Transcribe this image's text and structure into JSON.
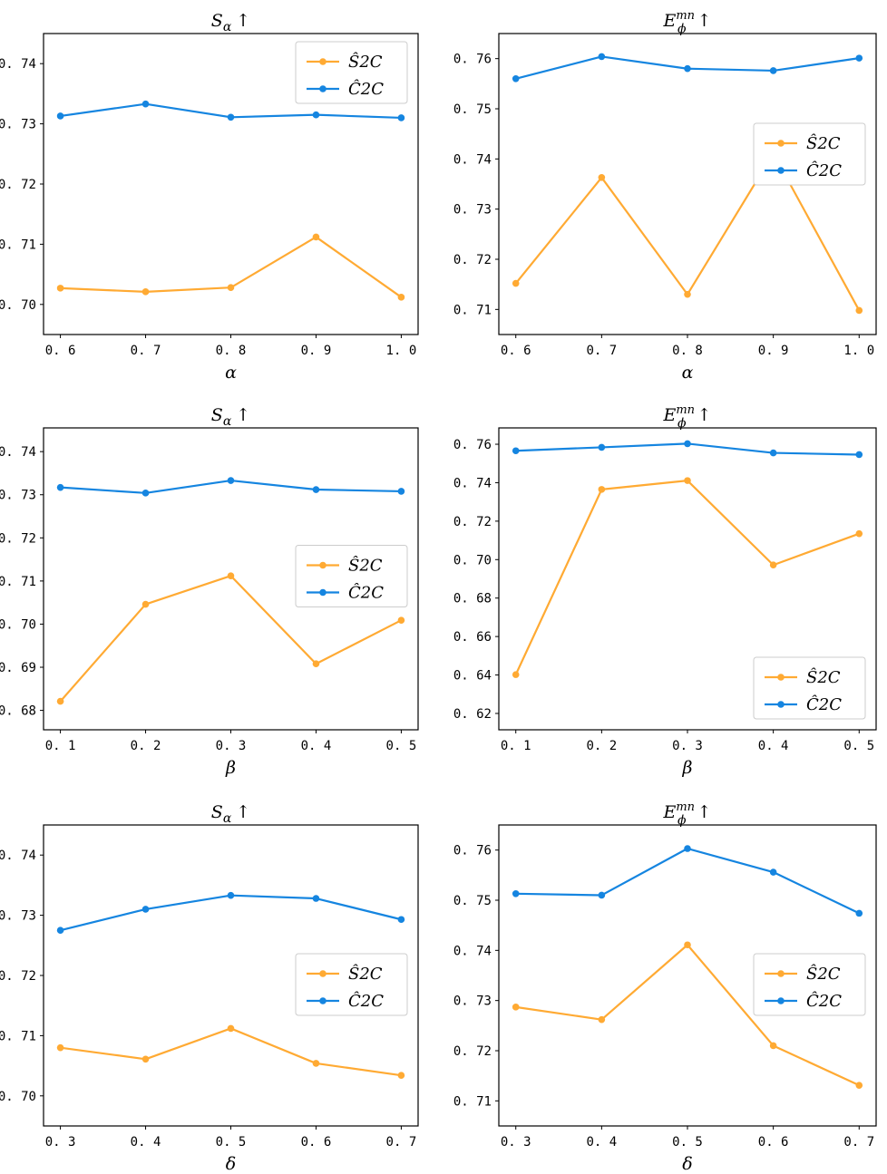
{
  "colors": {
    "s2c": "#FFAA33",
    "c2c": "#1585E0"
  },
  "chart_data": [
    {
      "type": "line",
      "title_main": "S",
      "title_sub": "α",
      "title_sup": "",
      "xlabel": "α",
      "categories": [
        "0. 6",
        "0. 7",
        "0. 8",
        "0. 9",
        "1. 0"
      ],
      "yticks": [
        "0. 70",
        "0. 71",
        "0. 72",
        "0. 73",
        "0. 74"
      ],
      "ytick_values": [
        0.7,
        0.71,
        0.72,
        0.73,
        0.74
      ],
      "ylim": [
        0.695,
        0.745
      ],
      "legend_position": "top-right",
      "series": [
        {
          "name": "Ŝ2C",
          "color_key": "s2c",
          "values": [
            0.7027,
            0.7021,
            0.7028,
            0.7112,
            0.7012
          ]
        },
        {
          "name": "Ĉ2C",
          "color_key": "c2c",
          "values": [
            0.7313,
            0.7333,
            0.7311,
            0.7315,
            0.731
          ]
        }
      ]
    },
    {
      "type": "line",
      "title_main": "E",
      "title_sub": "ϕ",
      "title_sup": "mn",
      "xlabel": "α",
      "categories": [
        "0. 6",
        "0. 7",
        "0. 8",
        "0. 9",
        "1. 0"
      ],
      "yticks": [
        "0. 71",
        "0. 72",
        "0. 73",
        "0. 74",
        "0. 75",
        "0. 76"
      ],
      "ytick_values": [
        0.71,
        0.72,
        0.73,
        0.74,
        0.75,
        0.76
      ],
      "ylim": [
        0.705,
        0.765
      ],
      "legend_position": "center-right",
      "series": [
        {
          "name": "Ŝ2C",
          "color_key": "s2c",
          "values": [
            0.7152,
            0.7363,
            0.713,
            0.7411,
            0.7098
          ]
        },
        {
          "name": "Ĉ2C",
          "color_key": "c2c",
          "values": [
            0.756,
            0.7604,
            0.758,
            0.7576,
            0.7601
          ]
        }
      ]
    },
    {
      "type": "line",
      "title_main": "S",
      "title_sub": "α",
      "title_sup": "",
      "xlabel": "β",
      "categories": [
        "0. 1",
        "0. 2",
        "0. 3",
        "0. 4",
        "0. 5"
      ],
      "yticks": [
        "0. 68",
        "0. 69",
        "0. 70",
        "0. 71",
        "0. 72",
        "0. 73",
        "0. 74"
      ],
      "ytick_values": [
        0.68,
        0.69,
        0.7,
        0.71,
        0.72,
        0.73,
        0.74
      ],
      "ylim": [
        0.6755,
        0.7455
      ],
      "legend_position": "center-right",
      "series": [
        {
          "name": "Ŝ2C",
          "color_key": "s2c",
          "values": [
            0.6821,
            0.7046,
            0.7112,
            0.6908,
            0.7009
          ]
        },
        {
          "name": "Ĉ2C",
          "color_key": "c2c",
          "values": [
            0.7317,
            0.7304,
            0.7333,
            0.7312,
            0.7308
          ]
        }
      ]
    },
    {
      "type": "line",
      "title_main": "E",
      "title_sub": "ϕ",
      "title_sup": "mn",
      "xlabel": "β",
      "categories": [
        "0. 1",
        "0. 2",
        "0. 3",
        "0. 4",
        "0. 5"
      ],
      "yticks": [
        "0. 62",
        "0. 64",
        "0. 66",
        "0. 68",
        "0. 70",
        "0. 72",
        "0. 74",
        "0. 76"
      ],
      "ytick_values": [
        0.62,
        0.64,
        0.66,
        0.68,
        0.7,
        0.72,
        0.74,
        0.76
      ],
      "ylim": [
        0.6115,
        0.7685
      ],
      "legend_position": "lower-right",
      "series": [
        {
          "name": "Ŝ2C",
          "color_key": "s2c",
          "values": [
            0.6402,
            0.7365,
            0.7411,
            0.6972,
            0.7135
          ]
        },
        {
          "name": "Ĉ2C",
          "color_key": "c2c",
          "values": [
            0.7566,
            0.7584,
            0.7603,
            0.7555,
            0.7546
          ]
        }
      ]
    },
    {
      "type": "line",
      "title_main": "S",
      "title_sub": "α",
      "title_sup": "",
      "xlabel": "δ",
      "categories": [
        "0. 3",
        "0. 4",
        "0. 5",
        "0. 6",
        "0. 7"
      ],
      "yticks": [
        "0. 70",
        "0. 71",
        "0. 72",
        "0. 73",
        "0. 74"
      ],
      "ytick_values": [
        0.7,
        0.71,
        0.72,
        0.73,
        0.74
      ],
      "ylim": [
        0.695,
        0.745
      ],
      "legend_position": "center-right",
      "series": [
        {
          "name": "Ŝ2C",
          "color_key": "s2c",
          "values": [
            0.708,
            0.7061,
            0.7112,
            0.7054,
            0.7034
          ]
        },
        {
          "name": "Ĉ2C",
          "color_key": "c2c",
          "values": [
            0.7275,
            0.731,
            0.7333,
            0.7328,
            0.7293
          ]
        }
      ]
    },
    {
      "type": "line",
      "title_main": "E",
      "title_sub": "ϕ",
      "title_sup": "mn",
      "xlabel": "δ",
      "categories": [
        "0. 3",
        "0. 4",
        "0. 5",
        "0. 6",
        "0. 7"
      ],
      "yticks": [
        "0. 71",
        "0. 72",
        "0. 73",
        "0. 74",
        "0. 75",
        "0. 76"
      ],
      "ytick_values": [
        0.71,
        0.72,
        0.73,
        0.74,
        0.75,
        0.76
      ],
      "ylim": [
        0.705,
        0.765
      ],
      "legend_position": "center-right",
      "series": [
        {
          "name": "Ŝ2C",
          "color_key": "s2c",
          "values": [
            0.7287,
            0.7262,
            0.7411,
            0.721,
            0.7131
          ]
        },
        {
          "name": "Ĉ2C",
          "color_key": "c2c",
          "values": [
            0.7513,
            0.751,
            0.7603,
            0.7556,
            0.7474
          ]
        }
      ]
    }
  ]
}
